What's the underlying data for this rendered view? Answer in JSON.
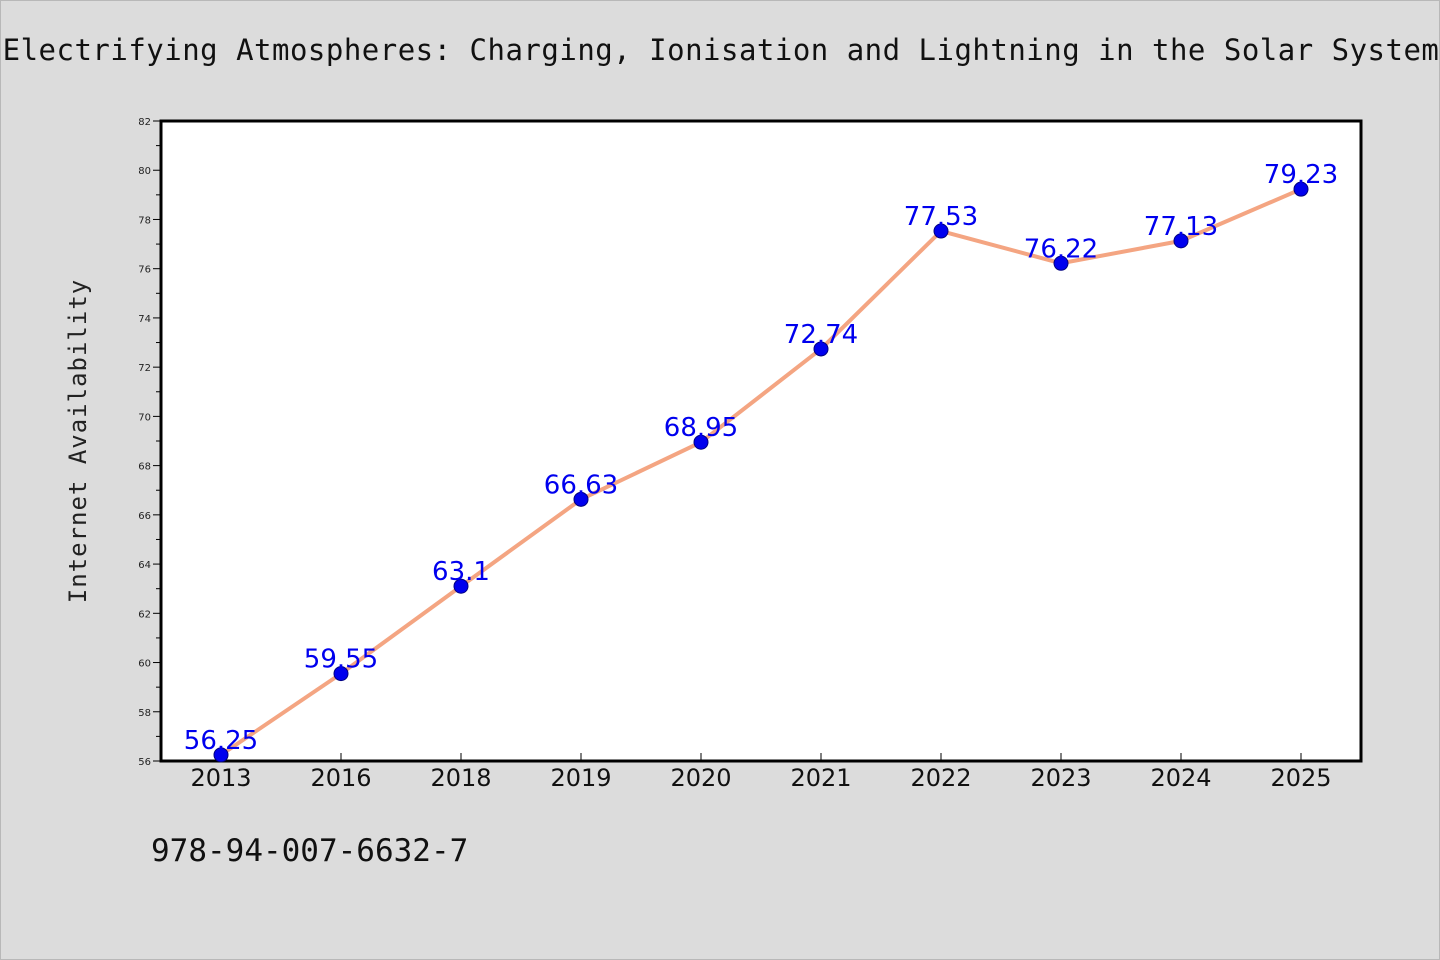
{
  "header": {
    "title": "Electrifying Atmospheres: Charging, Ionisation and Lightning in the Solar System"
  },
  "footer": {
    "code": "978-94-007-6632-7"
  },
  "colors": {
    "line": "#f4a582",
    "marker": "#0000ee",
    "label": "#0000ee"
  },
  "chart_data": {
    "type": "line",
    "title": "Electrifying Atmospheres: Charging, Ionisation and Lightning in the Solar System",
    "xlabel": "",
    "ylabel": "Internet Availability",
    "categories": [
      "2013",
      "2016",
      "2018",
      "2019",
      "2020",
      "2021",
      "2022",
      "2023",
      "2024",
      "2025"
    ],
    "values": [
      56.25,
      59.55,
      63.1,
      66.63,
      68.95,
      72.74,
      77.53,
      76.22,
      77.13,
      79.23
    ],
    "value_labels": [
      "56.25",
      "59.55",
      "63.1",
      "66.63",
      "68.95",
      "72.74",
      "77.53",
      "76.22",
      "77.13",
      "79.23"
    ],
    "ylim": [
      56,
      82
    ],
    "yticks": [
      56,
      58,
      60,
      62,
      64,
      66,
      68,
      70,
      72,
      74,
      76,
      78,
      80,
      82
    ],
    "grid": false,
    "legend": "none"
  }
}
